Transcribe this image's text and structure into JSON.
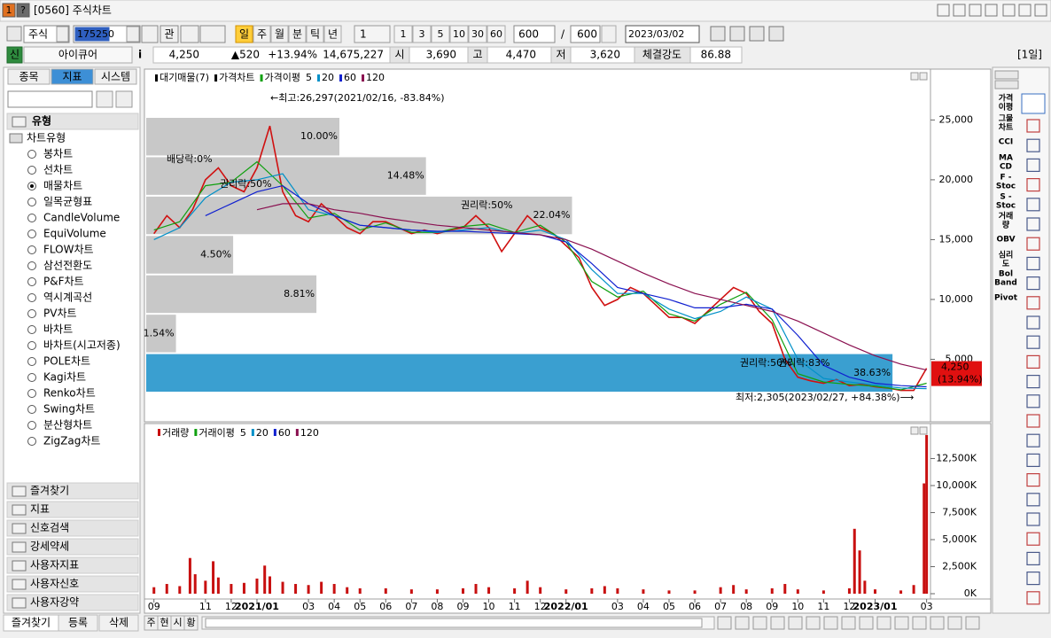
{
  "window": {
    "icons": [
      "1",
      "?"
    ],
    "title": "[0560] 주식차트"
  },
  "toolbar": {
    "market": "주식",
    "code": "175250",
    "watch": "관",
    "periods": [
      "일",
      "주",
      "월",
      "분",
      "틱",
      "년"
    ],
    "selected_period": 0,
    "interval": "1",
    "presets": [
      "1",
      "3",
      "5",
      "10",
      "30",
      "60"
    ],
    "count": "600",
    "separator": "/",
    "count_max": "600",
    "date": "2023/03/02"
  },
  "quote": {
    "badge": "신",
    "name": "아이큐어",
    "info": "i",
    "price": "4,250",
    "change": "▲520",
    "change_pct": "+13.94%",
    "volume": "14,675,227",
    "open_label": "시",
    "open": "3,690",
    "high_label": "고",
    "high": "4,470",
    "low_label": "저",
    "low": "3,620",
    "strength_label": "체결강도",
    "strength": "86.88",
    "period": "[1일]"
  },
  "sidebar": {
    "tabs": [
      "종목",
      "지표",
      "시스템"
    ],
    "selected_tab": 1,
    "section": "유형",
    "tree_root": "차트유형",
    "items": [
      "봉차트",
      "선차트",
      "매물차트",
      "일목균형표",
      "CandleVolume",
      "EquiVolume",
      "FLOW차트",
      "삼선전환도",
      "P&F차트",
      "역시계곡선",
      "PV차트",
      "바차트",
      "바차트(시고저종)",
      "POLE차트",
      "Kagi차트",
      "Renko차트",
      "Swing차트",
      "분산형차트",
      "ZigZag차트"
    ],
    "selected_item": 2,
    "folders": [
      "즐겨찾기",
      "지표",
      "신호검색",
      "강세약세",
      "사용자지표",
      "사용자신호",
      "사용자강약"
    ],
    "bottom": [
      "즐겨찾기",
      "등록",
      "삭제"
    ]
  },
  "chart_data": [
    {
      "type": "line",
      "ma_label": "가격이평",
      "xlim": [
        -0.3,
        30.15
      ],
      "ylim": [
        0,
        29100
      ],
      "yticks": [
        {
          "value": 5000,
          "label": "5,000"
        },
        {
          "value": 10000,
          "label": "10,000"
        },
        {
          "value": 15000,
          "label": "15,000"
        },
        {
          "value": 20000,
          "label": "20,000"
        },
        {
          "value": 25000,
          "label": "25,000"
        }
      ],
      "grid": false,
      "profile": {
        "name": "대기매물(7)",
        "color": "#c8c8c8",
        "max_color": "#3a9fd0",
        "edges": [
          2220,
          5510,
          8800,
          12090,
          15380,
          18670,
          21960,
          25250
        ],
        "values": [
          38.63,
          1.54,
          8.81,
          4.5,
          22.04,
          14.48,
          10.0
        ],
        "value_labels": [
          "38.63%",
          "1.54%",
          "8.81%",
          "4.50%",
          "22.04%",
          "14.48%",
          "10.00%"
        ]
      },
      "series": [
        {
          "name": "가격차트",
          "color": "#d01010",
          "x": [
            0,
            0.5,
            1,
            1.5,
            2,
            2.5,
            3,
            3.5,
            4,
            4.5,
            5,
            5.5,
            6,
            6.5,
            7,
            7.5,
            8,
            8.5,
            9,
            9.5,
            10,
            10.5,
            11,
            11.5,
            12,
            12.5,
            13,
            13.5,
            14,
            14.5,
            15,
            15.5,
            16,
            16.5,
            17,
            17.5,
            18,
            18.5,
            19,
            19.5,
            20,
            20.5,
            21,
            21.5,
            22,
            22.5,
            23,
            23.5,
            24,
            24.5,
            25,
            25.5,
            26,
            26.5,
            27,
            27.5,
            28,
            28.5,
            29,
            29.5,
            30
          ],
          "values": [
            15500,
            17000,
            16000,
            17500,
            20000,
            21000,
            19500,
            19000,
            21000,
            24500,
            19000,
            17000,
            16500,
            18000,
            17000,
            16000,
            15500,
            16500,
            16500,
            16000,
            15500,
            15800,
            15500,
            15800,
            16000,
            17000,
            16000,
            14000,
            15500,
            17000,
            16000,
            15500,
            14500,
            13500,
            11000,
            9500,
            10000,
            11000,
            10500,
            9500,
            8500,
            8500,
            8000,
            9000,
            10000,
            11000,
            10500,
            9000,
            8000,
            5000,
            3500,
            3200,
            3000,
            3300,
            2800,
            2900,
            2700,
            2600,
            2400,
            2400,
            4250
          ]
        },
        {
          "name": "5",
          "color": "#10a010",
          "x": [
            0,
            1,
            2,
            3,
            4,
            5,
            6,
            7,
            8,
            9,
            10,
            11,
            12,
            13,
            14,
            15,
            16,
            17,
            18,
            19,
            20,
            21,
            22,
            23,
            24,
            25,
            26,
            27,
            28,
            29,
            30
          ],
          "values": [
            15800,
            16500,
            19500,
            19800,
            21500,
            19500,
            16800,
            17200,
            15800,
            16400,
            15600,
            15600,
            16100,
            16300,
            15600,
            16200,
            14800,
            11500,
            10200,
            10700,
            8800,
            8200,
            9600,
            10600,
            8300,
            3800,
            3100,
            2900,
            2750,
            2450,
            3000
          ]
        },
        {
          "name": "20",
          "color": "#0090c8",
          "x": [
            0,
            1,
            2,
            3,
            4,
            5,
            6,
            7,
            8,
            9,
            10,
            11,
            12,
            13,
            14,
            15,
            16,
            17,
            18,
            19,
            20,
            21,
            22,
            23,
            24,
            25,
            26,
            27,
            28,
            29,
            30
          ],
          "values": [
            15000,
            16000,
            18500,
            19800,
            20000,
            20500,
            17500,
            17000,
            16200,
            16000,
            15800,
            15600,
            15800,
            16000,
            15500,
            15800,
            15000,
            12500,
            10500,
            10500,
            9200,
            8400,
            9000,
            10200,
            9200,
            5000,
            3400,
            3100,
            2850,
            2600,
            2550
          ]
        },
        {
          "name": "60",
          "color": "#1020d0",
          "x": [
            0,
            1,
            2,
            3,
            4,
            5,
            6,
            7,
            8,
            9,
            10,
            11,
            12,
            13,
            14,
            15,
            16,
            17,
            18,
            19,
            20,
            21,
            22,
            23,
            24,
            25,
            26,
            27,
            28,
            29,
            30
          ],
          "values": [
            null,
            null,
            17000,
            18000,
            19000,
            19500,
            18000,
            17000,
            16200,
            16000,
            15800,
            15700,
            15700,
            15600,
            15500,
            15400,
            14800,
            13000,
            11000,
            10500,
            10000,
            9300,
            9300,
            9600,
            9200,
            7000,
            4500,
            3500,
            3000,
            2800,
            2700
          ]
        },
        {
          "name": "120",
          "color": "#8a1050",
          "x": [
            0,
            1,
            2,
            3,
            4,
            5,
            6,
            7,
            8,
            9,
            10,
            11,
            12,
            13,
            14,
            15,
            16,
            17,
            18,
            19,
            20,
            21,
            22,
            23,
            24,
            25,
            26,
            27,
            28,
            29,
            30
          ],
          "values": [
            null,
            null,
            null,
            null,
            17500,
            18000,
            18000,
            17500,
            17200,
            16800,
            16500,
            16200,
            16000,
            15800,
            15600,
            15400,
            15000,
            14200,
            13200,
            12200,
            11300,
            10500,
            10000,
            9500,
            9000,
            8200,
            7200,
            6200,
            5300,
            4600,
            4100
          ]
        }
      ],
      "annotations": [
        {
          "text": "←최고:26,297(2021/02/16, -83.84%)",
          "color": "#c01010"
        },
        {
          "text": "최저:2,305(2023/02/27, +84.38%)⟶",
          "color": "#1020c0"
        },
        {
          "text": "배당락:0%",
          "color": "#108010"
        },
        {
          "text": "권리락:50%",
          "color": "#108010"
        },
        {
          "text": "권리락:50%",
          "color": "#108010"
        },
        {
          "text": "권리락:50%",
          "color": "#108010"
        },
        {
          "text": "권리락:83%",
          "color": "#108010"
        }
      ],
      "last_label": "4,250",
      "last_change": "(13.94%)",
      "last_color": "#e01010"
    },
    {
      "type": "bar",
      "xlim": [
        -0.3,
        30.15
      ],
      "ylim": [
        0,
        15570000
      ],
      "yticks": [
        {
          "value": 0,
          "label": "0K"
        },
        {
          "value": 2500000,
          "label": "2,500K"
        },
        {
          "value": 5000000,
          "label": "5,000K"
        },
        {
          "value": 7500000,
          "label": "7,500K"
        },
        {
          "value": 10000000,
          "label": "10,000K"
        },
        {
          "value": 12500000,
          "label": "12,500K"
        }
      ],
      "xticks": [
        {
          "value": 0,
          "label": "09"
        },
        {
          "value": 2,
          "label": "11"
        },
        {
          "value": 3,
          "label": "12"
        },
        {
          "value": 4,
          "label": "2021/01"
        },
        {
          "value": 6,
          "label": "03"
        },
        {
          "value": 7,
          "label": "04"
        },
        {
          "value": 8,
          "label": "05"
        },
        {
          "value": 9,
          "label": "06"
        },
        {
          "value": 10,
          "label": "07"
        },
        {
          "value": 11,
          "label": "08"
        },
        {
          "value": 12,
          "label": "09"
        },
        {
          "value": 13,
          "label": "10"
        },
        {
          "value": 14,
          "label": "11"
        },
        {
          "value": 15,
          "label": "12"
        },
        {
          "value": 16,
          "label": "2022/01"
        },
        {
          "value": 18,
          "label": "03"
        },
        {
          "value": 19,
          "label": "04"
        },
        {
          "value": 20,
          "label": "05"
        },
        {
          "value": 21,
          "label": "06"
        },
        {
          "value": 22,
          "label": "07"
        },
        {
          "value": 23,
          "label": "08"
        },
        {
          "value": 24,
          "label": "09"
        },
        {
          "value": 25,
          "label": "10"
        },
        {
          "value": 26,
          "label": "11"
        },
        {
          "value": 27,
          "label": "12"
        },
        {
          "value": 28,
          "label": "2023/01"
        },
        {
          "value": 30,
          "label": "03"
        }
      ],
      "series": [
        {
          "name": "거래량",
          "color": "#c81010",
          "x": [
            0,
            0.5,
            1,
            1.4,
            1.6,
            2,
            2.3,
            2.5,
            3,
            3.5,
            4,
            4.3,
            4.5,
            5,
            5.5,
            6,
            6.5,
            7,
            7.5,
            8,
            9,
            10,
            11,
            12,
            12.5,
            13,
            14,
            14.5,
            15,
            16,
            17,
            17.5,
            18,
            19,
            20,
            21,
            22,
            22.5,
            23,
            24,
            24.5,
            25,
            26,
            27,
            27.2,
            27.4,
            27.6,
            28,
            29,
            29.5,
            29.9,
            30
          ],
          "values": [
            600000,
            900000,
            700000,
            3300000,
            1800000,
            1200000,
            3000000,
            1500000,
            900000,
            1000000,
            1400000,
            2600000,
            1600000,
            1100000,
            900000,
            800000,
            1100000,
            900000,
            600000,
            500000,
            500000,
            400000,
            400000,
            500000,
            900000,
            600000,
            500000,
            1200000,
            600000,
            400000,
            500000,
            700000,
            500000,
            400000,
            300000,
            300000,
            600000,
            800000,
            400000,
            500000,
            900000,
            400000,
            300000,
            500000,
            6000000,
            4000000,
            1200000,
            400000,
            300000,
            800000,
            10200000,
            14675227
          ]
        }
      ],
      "ma_label": "거래이평",
      "ma_legend": [
        {
          "name": "5",
          "color": "#10a010"
        },
        {
          "name": "20",
          "color": "#0090c8"
        },
        {
          "name": "60",
          "color": "#1020d0"
        },
        {
          "name": "120",
          "color": "#8a1050"
        }
      ]
    }
  ],
  "right_tools": [
    [
      "가격",
      "이평"
    ],
    [
      "그물",
      "차트"
    ],
    [
      "CCI"
    ],
    [
      "MA",
      "CD"
    ],
    [
      "F -",
      "Stoc"
    ],
    [
      "S -",
      "Stoc"
    ],
    [
      "거래",
      "량"
    ],
    [
      "OBV"
    ],
    [
      "심리",
      "도"
    ],
    [
      "Bol",
      "Band"
    ],
    [
      "Pivot"
    ]
  ],
  "bottom_bar": {
    "buttons": [
      "주",
      "현",
      "시",
      "황"
    ]
  }
}
